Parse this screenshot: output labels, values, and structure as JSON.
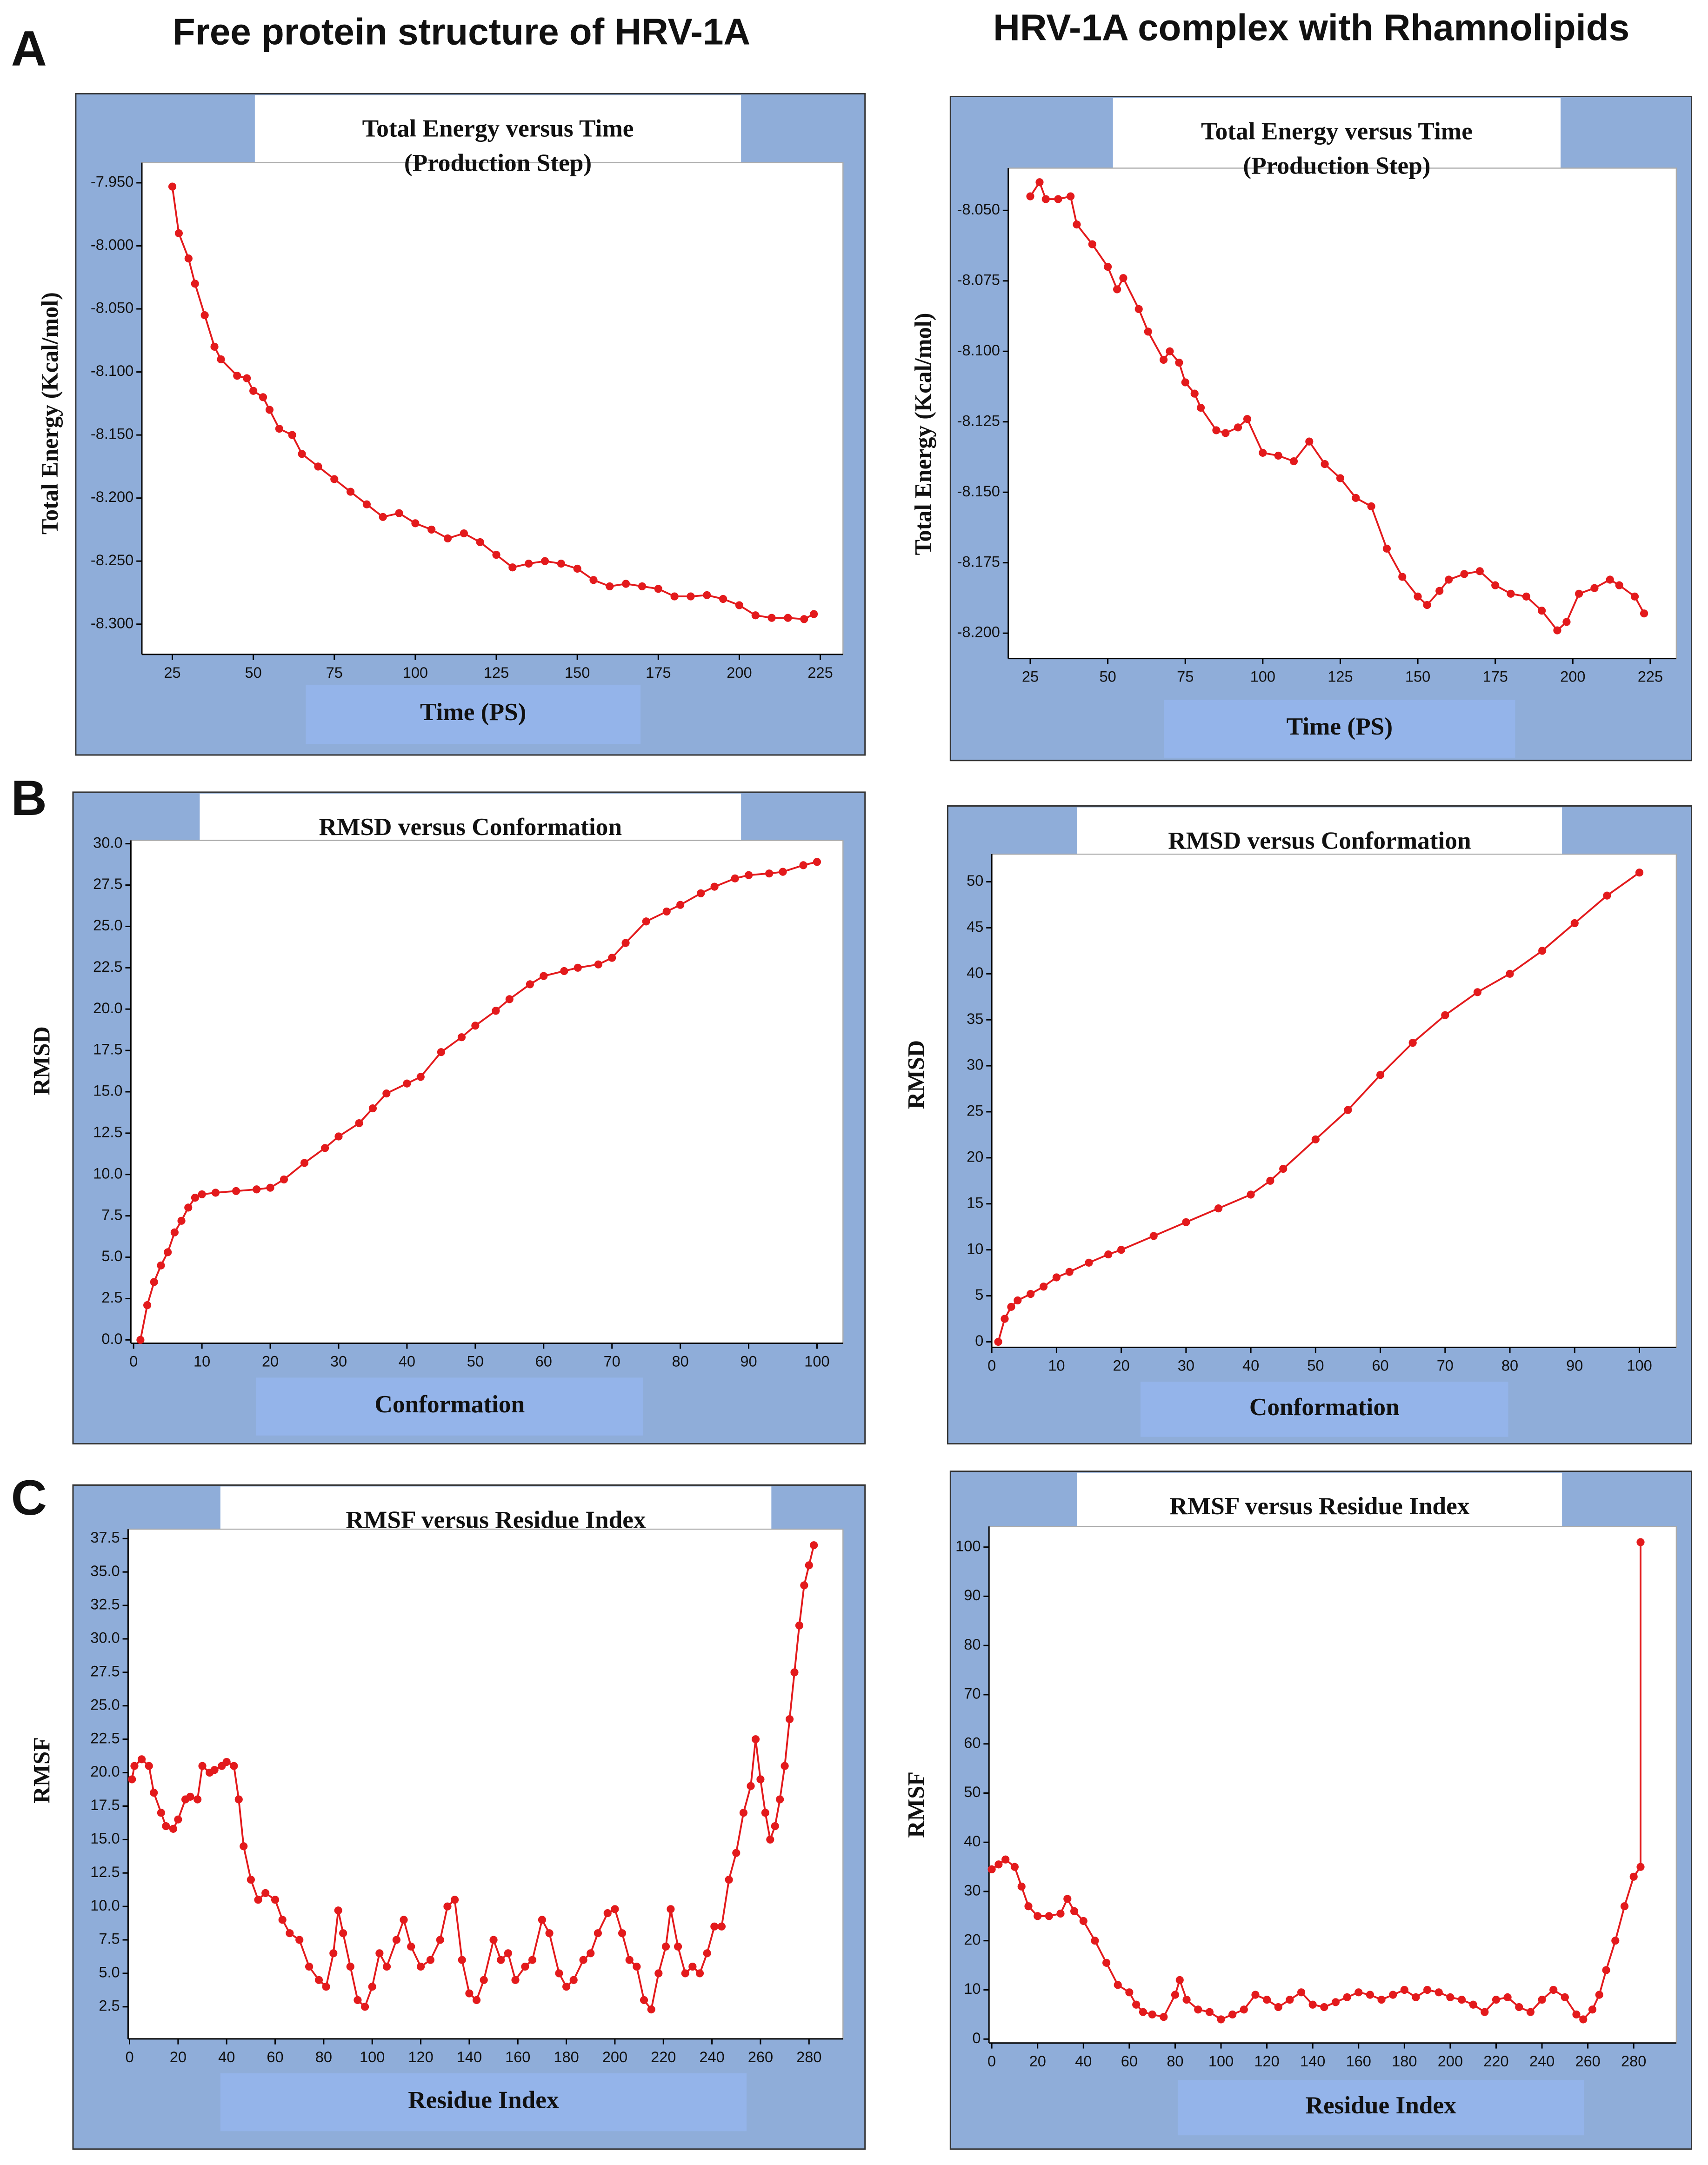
{
  "figure": {
    "columns": [
      "Free protein structure of HRV-1A",
      "HRV-1A complex with Rhamnolipids"
    ],
    "panels": [
      "A",
      "B",
      "C"
    ]
  },
  "chart_data": [
    {
      "type": "line",
      "title": "Total Energy versus Time",
      "subtitle": "(Production Step)",
      "x_label": "Time (PS)",
      "y_label": "Total Energy (Kcal/mol)",
      "color": "#e31a1c",
      "markers": true,
      "x": [
        25,
        27,
        30,
        32,
        35,
        38,
        40,
        45,
        48,
        50,
        53,
        55,
        58,
        62,
        65,
        70,
        75,
        80,
        85,
        90,
        95,
        100,
        105,
        110,
        115,
        120,
        125,
        130,
        135,
        140,
        145,
        150,
        155,
        160,
        165,
        170,
        175,
        180,
        185,
        190,
        195,
        200,
        205,
        210,
        215,
        220,
        223
      ],
      "values": [
        -7.953,
        -7.99,
        -8.01,
        -8.03,
        -8.055,
        -8.08,
        -8.09,
        -8.103,
        -8.105,
        -8.115,
        -8.12,
        -8.13,
        -8.145,
        -8.15,
        -8.165,
        -8.175,
        -8.185,
        -8.195,
        -8.205,
        -8.215,
        -8.212,
        -8.22,
        -8.225,
        -8.232,
        -8.228,
        -8.235,
        -8.245,
        -8.255,
        -8.252,
        -8.25,
        -8.252,
        -8.256,
        -8.265,
        -8.27,
        -8.268,
        -8.27,
        -8.272,
        -8.278,
        -8.278,
        -8.277,
        -8.28,
        -8.285,
        -8.293,
        -8.295,
        -8.295,
        -8.296,
        -8.292
      ],
      "xlim": [
        15.6,
        232
      ],
      "ylim": [
        -8.324,
        -7.934
      ],
      "xticks": [
        25,
        50,
        75,
        100,
        125,
        150,
        175,
        200,
        225
      ],
      "yticks": [
        {
          "value": -7.95,
          "label": "-7.950"
        },
        {
          "value": -8.0,
          "label": "-8.000"
        },
        {
          "value": -8.05,
          "label": "-8.050"
        },
        {
          "value": -8.1,
          "label": "-8.100"
        },
        {
          "value": -8.15,
          "label": "-8.150"
        },
        {
          "value": -8.2,
          "label": "-8.200"
        },
        {
          "value": -8.25,
          "label": "-8.250"
        },
        {
          "value": -8.3,
          "label": "-8.300"
        }
      ]
    },
    {
      "type": "line",
      "title": "Total Energy versus Time",
      "subtitle": "(Production Step)",
      "x_label": "Time (PS)",
      "y_label": "Total Energy (Kcal/mol)",
      "color": "#e31a1c",
      "markers": true,
      "x": [
        25,
        28,
        30,
        34,
        38,
        40,
        45,
        50,
        53,
        55,
        60,
        63,
        68,
        70,
        73,
        75,
        78,
        80,
        85,
        88,
        92,
        95,
        100,
        105,
        110,
        115,
        120,
        125,
        130,
        135,
        140,
        145,
        150,
        153,
        157,
        160,
        165,
        170,
        175,
        180,
        185,
        190,
        195,
        198,
        202,
        207,
        212,
        215,
        220,
        223
      ],
      "values": [
        -8.045,
        -8.04,
        -8.046,
        -8.046,
        -8.045,
        -8.055,
        -8.062,
        -8.07,
        -8.078,
        -8.074,
        -8.085,
        -8.093,
        -8.103,
        -8.1,
        -8.104,
        -8.111,
        -8.115,
        -8.12,
        -8.128,
        -8.129,
        -8.127,
        -8.124,
        -8.136,
        -8.137,
        -8.139,
        -8.132,
        -8.14,
        -8.145,
        -8.152,
        -8.155,
        -8.17,
        -8.18,
        -8.187,
        -8.19,
        -8.185,
        -8.181,
        -8.179,
        -8.178,
        -8.183,
        -8.186,
        -8.187,
        -8.192,
        -8.199,
        -8.196,
        -8.186,
        -8.184,
        -8.181,
        -8.183,
        -8.187,
        -8.193
      ],
      "xlim": [
        17.9,
        233.4
      ],
      "ylim": [
        -8.209,
        -8.035
      ],
      "xticks": [
        25,
        50,
        75,
        100,
        125,
        150,
        175,
        200,
        225
      ],
      "yticks": [
        {
          "value": -8.05,
          "label": "-8.050"
        },
        {
          "value": -8.075,
          "label": "-8.075"
        },
        {
          "value": -8.1,
          "label": "-8.100"
        },
        {
          "value": -8.125,
          "label": "-8.125"
        },
        {
          "value": -8.15,
          "label": "-8.150"
        },
        {
          "value": -8.175,
          "label": "-8.175"
        },
        {
          "value": -8.2,
          "label": "-8.200"
        }
      ]
    },
    {
      "type": "line",
      "title": "RMSD versus Conformation",
      "x_label": "Conformation",
      "y_label": "RMSD",
      "color": "#e31a1c",
      "markers": true,
      "x": [
        1,
        2,
        3,
        4,
        5,
        6,
        7,
        8,
        9,
        10,
        12,
        15,
        18,
        20,
        22,
        25,
        28,
        30,
        33,
        35,
        37,
        40,
        42,
        45,
        48,
        50,
        53,
        55,
        58,
        60,
        63,
        65,
        68,
        70,
        72,
        75,
        78,
        80,
        83,
        85,
        88,
        90,
        93,
        95,
        98,
        100
      ],
      "values": [
        0,
        2.1,
        3.5,
        4.5,
        5.3,
        6.5,
        7.2,
        8.0,
        8.6,
        8.8,
        8.9,
        9.0,
        9.1,
        9.2,
        9.7,
        10.7,
        11.6,
        12.3,
        13.1,
        14.0,
        14.9,
        15.5,
        15.9,
        17.4,
        18.3,
        19.0,
        19.9,
        20.6,
        21.5,
        22.0,
        22.3,
        22.5,
        22.7,
        23.1,
        24.0,
        25.3,
        25.9,
        26.3,
        27.0,
        27.4,
        27.9,
        28.1,
        28.2,
        28.3,
        28.7,
        28.9
      ],
      "xlim": [
        -0.4,
        103.8
      ],
      "ylim": [
        -0.2,
        30.2
      ],
      "xticks": [
        0,
        10,
        20,
        30,
        40,
        50,
        60,
        70,
        80,
        90,
        100
      ],
      "yticks": [
        {
          "value": 0,
          "label": "0.0"
        },
        2.5,
        {
          "value": 5,
          "label": "5.0"
        },
        7.5,
        {
          "value": 10,
          "label": "10.0"
        },
        12.5,
        {
          "value": 15,
          "label": "15.0"
        },
        17.5,
        {
          "value": 20,
          "label": "20.0"
        },
        22.5,
        {
          "value": 25,
          "label": "25.0"
        },
        27.5,
        {
          "value": 30,
          "label": "30.0"
        }
      ]
    },
    {
      "type": "line",
      "title": "RMSD versus Conformation",
      "x_label": "Conformation",
      "y_label": "RMSD",
      "color": "#e31a1c",
      "markers": true,
      "x": [
        1,
        2,
        3,
        4,
        6,
        8,
        10,
        12,
        15,
        18,
        20,
        25,
        30,
        35,
        40,
        43,
        45,
        50,
        55,
        60,
        65,
        70,
        75,
        80,
        85,
        90,
        95,
        100
      ],
      "values": [
        0,
        2.5,
        3.8,
        4.5,
        5.2,
        6,
        7,
        7.6,
        8.6,
        9.5,
        10,
        11.5,
        13,
        14.5,
        16,
        17.5,
        18.8,
        22,
        25.2,
        29,
        32.5,
        35.5,
        38,
        40,
        42.5,
        45.5,
        48.5,
        51
      ],
      "xlim": [
        0,
        105.7
      ],
      "ylim": [
        -0.6,
        53
      ],
      "xticks": [
        0,
        10,
        20,
        30,
        40,
        50,
        60,
        70,
        80,
        90,
        100
      ],
      "yticks": [
        0,
        5,
        10,
        15,
        20,
        25,
        30,
        35,
        40,
        45,
        50
      ]
    },
    {
      "type": "line",
      "title": "RMSF  versus Residue Index",
      "x_label": "Residue Index",
      "y_label": "RMSF",
      "color": "#e31a1c",
      "markers": true,
      "x": [
        1,
        2,
        5,
        8,
        10,
        13,
        15,
        18,
        20,
        23,
        25,
        28,
        30,
        33,
        35,
        38,
        40,
        43,
        45,
        47,
        50,
        53,
        56,
        60,
        63,
        66,
        70,
        74,
        78,
        81,
        84,
        86,
        88,
        91,
        94,
        97,
        100,
        103,
        106,
        110,
        113,
        116,
        120,
        124,
        128,
        131,
        134,
        137,
        140,
        143,
        146,
        150,
        153,
        156,
        159,
        163,
        166,
        170,
        173,
        177,
        180,
        183,
        187,
        190,
        193,
        197,
        200,
        203,
        206,
        209,
        212,
        215,
        218,
        221,
        223,
        226,
        229,
        232,
        235,
        238,
        241,
        244,
        247,
        250,
        253,
        256,
        258,
        260,
        262,
        264,
        266,
        268,
        270,
        272,
        274,
        276,
        278,
        280,
        282
      ],
      "values": [
        19.5,
        20.5,
        21,
        20.5,
        18.5,
        17,
        16,
        15.8,
        16.5,
        18,
        18.2,
        18,
        20.5,
        20,
        20.2,
        20.5,
        20.8,
        20.5,
        18,
        14.5,
        12,
        10.5,
        11,
        10.5,
        9,
        8,
        7.5,
        5.5,
        4.5,
        4,
        6.5,
        9.7,
        8,
        5.5,
        3,
        2.5,
        4,
        6.5,
        5.5,
        7.5,
        9,
        7,
        5.5,
        6,
        7.5,
        10,
        10.5,
        6,
        3.5,
        3,
        4.5,
        7.5,
        6,
        6.5,
        4.5,
        5.5,
        6,
        9,
        8,
        5,
        4,
        4.5,
        6,
        6.5,
        8,
        9.5,
        9.8,
        8,
        6,
        5.5,
        3,
        2.3,
        5,
        7,
        9.8,
        7,
        5,
        5.5,
        5,
        6.5,
        8.5,
        8.5,
        12,
        14,
        17,
        19,
        22.5,
        19.5,
        17,
        15,
        16,
        18,
        20.5,
        24,
        27.5,
        31,
        34,
        35.5,
        37
      ],
      "xlim": [
        -0.6,
        294
      ],
      "ylim": [
        0.1,
        38.2
      ],
      "xticks": [
        0,
        20,
        40,
        60,
        80,
        100,
        120,
        140,
        160,
        180,
        200,
        220,
        240,
        260,
        280
      ],
      "yticks": [
        2.5,
        {
          "value": 5,
          "label": "5.0"
        },
        7.5,
        {
          "value": 10,
          "label": "10.0"
        },
        12.5,
        {
          "value": 15,
          "label": "15.0"
        },
        17.5,
        {
          "value": 20,
          "label": "20.0"
        },
        22.5,
        {
          "value": 25,
          "label": "25.0"
        },
        27.5,
        {
          "value": 30,
          "label": "30.0"
        },
        32.5,
        {
          "value": 35,
          "label": "35.0"
        },
        37.5
      ]
    },
    {
      "type": "line",
      "title": "RMSF  versus Residue Index",
      "x_label": "Residue Index",
      "y_label": "RMSF",
      "color": "#e31a1c",
      "markers": true,
      "x": [
        0,
        3,
        6,
        10,
        13,
        16,
        20,
        25,
        30,
        33,
        36,
        40,
        45,
        50,
        55,
        60,
        63,
        66,
        70,
        75,
        80,
        82,
        85,
        90,
        95,
        100,
        105,
        110,
        115,
        120,
        125,
        130,
        135,
        140,
        145,
        150,
        155,
        160,
        165,
        170,
        175,
        180,
        185,
        190,
        195,
        200,
        205,
        210,
        215,
        220,
        225,
        230,
        235,
        240,
        245,
        250,
        255,
        258,
        262,
        265,
        268,
        272,
        276,
        280,
        283,
        283
      ],
      "values": [
        34.5,
        35.5,
        36.5,
        35,
        31,
        27,
        25,
        25,
        25.5,
        28.5,
        26,
        24,
        20,
        15.5,
        11,
        9.5,
        7,
        5.5,
        5,
        4.5,
        9,
        12,
        8,
        6,
        5.5,
        4,
        5,
        6,
        9,
        8,
        6.5,
        8,
        9.5,
        7,
        6.5,
        7.5,
        8.5,
        9.5,
        9,
        8,
        9,
        10,
        8.5,
        10,
        9.5,
        8.5,
        8,
        7,
        5.5,
        8,
        8.5,
        6.5,
        5.5,
        8,
        10,
        8.5,
        5,
        4,
        6,
        9,
        14,
        20,
        27,
        33,
        35,
        101
      ],
      "xlim": [
        -1.2,
        298.6
      ],
      "ylim": [
        -0.8,
        104.2
      ],
      "xticks": [
        0,
        20,
        40,
        60,
        80,
        100,
        120,
        140,
        160,
        180,
        200,
        220,
        240,
        260,
        280
      ],
      "yticks": [
        0,
        10,
        20,
        30,
        40,
        50,
        60,
        70,
        80,
        90,
        100
      ]
    }
  ]
}
